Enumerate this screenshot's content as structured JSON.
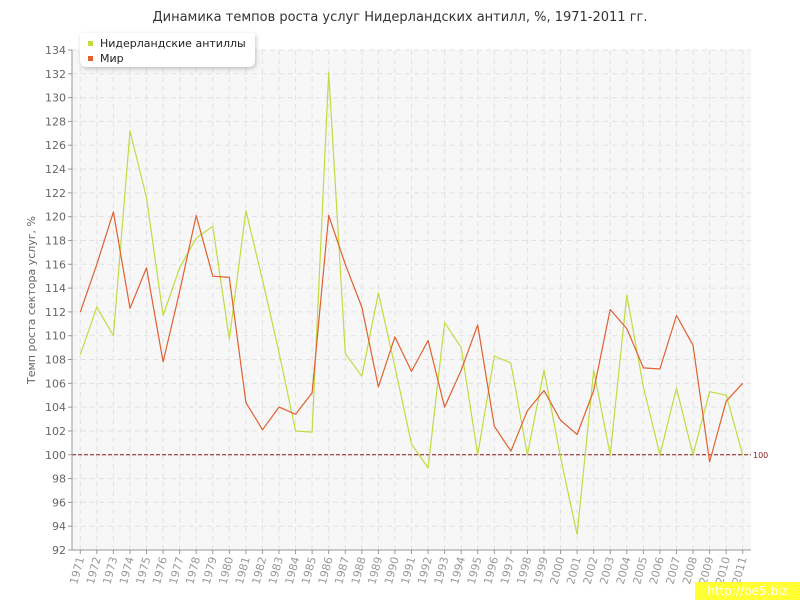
{
  "chart_data": {
    "type": "line",
    "title": "Динамика темпов роста услуг Нидерландских антилл, %, 1971-2011 гг.",
    "ylabel": "Темп роста сектора услуг, %",
    "xlabel": "",
    "ylim": [
      92,
      134
    ],
    "y_ticks": [
      "92",
      "94",
      "96",
      "98",
      "100",
      "102",
      "104",
      "106",
      "108",
      "110",
      "112",
      "114",
      "116",
      "118",
      "120",
      "122",
      "124",
      "126",
      "128",
      "130",
      "132",
      "134"
    ],
    "x": [
      "1971",
      "1972",
      "1973",
      "1974",
      "1975",
      "1976",
      "1977",
      "1978",
      "1979",
      "1980",
      "1981",
      "1982",
      "1983",
      "1984",
      "1985",
      "1986",
      "1987",
      "1988",
      "1989",
      "1990",
      "1991",
      "1992",
      "1993",
      "1994",
      "1995",
      "1996",
      "1997",
      "1998",
      "1999",
      "2000",
      "2001",
      "2002",
      "2003",
      "2004",
      "2005",
      "2006",
      "2007",
      "2008",
      "2009",
      "2010",
      "2011"
    ],
    "series": [
      {
        "name": "Нидерландские антиллы",
        "color": "#c0dc40",
        "values": [
          108.4,
          112.4,
          110.0,
          127.2,
          121.6,
          111.7,
          115.7,
          118.2,
          119.2,
          109.7,
          120.5,
          114.7,
          108.6,
          102.0,
          101.9,
          132.1,
          108.5,
          106.6,
          113.6,
          107.4,
          100.9,
          98.9,
          111.1,
          109.0,
          100.0,
          108.3,
          107.7,
          100.0,
          107.1,
          99.8,
          93.3,
          107.1,
          100.0,
          113.4,
          105.7,
          100.0,
          105.6,
          100.0,
          105.3,
          105.0,
          100.0
        ]
      },
      {
        "name": "Мир",
        "color": "#e06030",
        "values": [
          112.0,
          116.0,
          120.4,
          112.3,
          115.7,
          107.8,
          113.7,
          120.1,
          115.0,
          114.9,
          104.4,
          102.1,
          104.0,
          103.4,
          105.2,
          120.1,
          116.0,
          112.4,
          105.7,
          109.9,
          107.0,
          109.6,
          104.0,
          107.1,
          110.9,
          102.4,
          100.3,
          103.7,
          105.4,
          102.9,
          101.7,
          105.4,
          112.2,
          110.6,
          107.3,
          107.2,
          111.7,
          109.2,
          99.4,
          104.5,
          106.0
        ]
      }
    ],
    "reference_line": {
      "value": 100,
      "label": "100",
      "color": "#8b1a1a"
    },
    "grid": true,
    "legend_position": "top-left"
  },
  "watermark": "http://be5.biz"
}
